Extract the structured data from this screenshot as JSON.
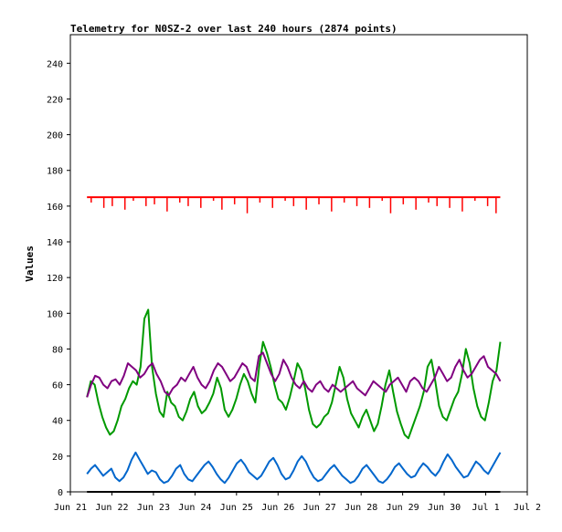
{
  "chart_data": {
    "type": "line",
    "title": "Telemetry for N0SZ-2 over last 240 hours (2874 points)",
    "xlabel": "",
    "ylabel": "Values",
    "ylim": [
      0,
      256
    ],
    "yticks": [
      0,
      20,
      40,
      60,
      80,
      100,
      120,
      140,
      160,
      180,
      200,
      220,
      240
    ],
    "x_tick_labels": [
      "Jun 21",
      "Jun 22",
      "Jun 23",
      "Jun 24",
      "Jun 25",
      "Jun 26",
      "Jun 27",
      "Jun 28",
      "Jun 29",
      "Jun 30",
      "Jul 1",
      "Jul 2"
    ],
    "x_range_days": [
      0,
      11
    ],
    "data_span_days": [
      0.4,
      10.35
    ],
    "grid": false,
    "legend": "none",
    "series": [
      {
        "color": "#ff0000",
        "baseline": 165,
        "values": [
          165,
          162,
          165,
          165,
          159,
          165,
          160,
          165,
          165,
          158,
          165,
          163,
          165,
          165,
          160,
          165,
          161,
          165,
          165,
          157,
          165,
          165,
          162,
          165,
          160,
          165,
          165,
          159,
          165,
          165,
          163,
          165,
          158,
          165,
          165,
          161,
          165,
          165,
          156,
          165,
          165,
          162,
          165,
          165,
          159,
          165,
          165,
          163,
          165,
          160,
          165,
          165,
          158,
          165,
          165,
          161,
          165,
          165,
          157,
          165,
          165,
          162,
          165,
          165,
          160,
          165,
          165,
          159,
          165,
          165,
          163,
          165,
          156,
          165,
          165,
          161,
          165,
          165,
          158,
          165,
          165,
          162,
          165,
          160,
          165,
          165,
          159,
          165,
          165,
          157,
          165,
          165,
          163,
          165,
          165,
          160,
          165,
          156,
          165
        ]
      },
      {
        "color": "#009900",
        "values": [
          53,
          62,
          60,
          50,
          42,
          36,
          32,
          34,
          40,
          48,
          52,
          58,
          62,
          60,
          70,
          97,
          102,
          70,
          55,
          45,
          42,
          56,
          50,
          48,
          42,
          40,
          45,
          52,
          56,
          48,
          44,
          46,
          50,
          55,
          64,
          58,
          46,
          42,
          46,
          52,
          60,
          66,
          62,
          55,
          50,
          70,
          84,
          78,
          70,
          60,
          52,
          50,
          46,
          53,
          62,
          72,
          68,
          58,
          46,
          38,
          36,
          38,
          42,
          44,
          50,
          60,
          70,
          64,
          52,
          44,
          40,
          36,
          42,
          46,
          40,
          34,
          38,
          48,
          60,
          68,
          56,
          45,
          38,
          32,
          30,
          36,
          42,
          48,
          56,
          70,
          74,
          62,
          48,
          42,
          40,
          46,
          52,
          56,
          66,
          80,
          72,
          58,
          48,
          42,
          40,
          50,
          62,
          68,
          84
        ]
      },
      {
        "color": "#800080",
        "values": [
          53,
          60,
          65,
          64,
          60,
          58,
          62,
          63,
          60,
          65,
          72,
          70,
          68,
          64,
          66,
          70,
          72,
          66,
          62,
          56,
          54,
          58,
          60,
          64,
          62,
          66,
          70,
          64,
          60,
          58,
          62,
          68,
          72,
          70,
          66,
          62,
          64,
          68,
          72,
          70,
          64,
          62,
          76,
          78,
          72,
          66,
          62,
          66,
          74,
          70,
          64,
          60,
          58,
          62,
          58,
          56,
          60,
          62,
          58,
          56,
          60,
          58,
          56,
          58,
          60,
          62,
          58,
          56,
          54,
          58,
          62,
          60,
          58,
          56,
          60,
          62,
          64,
          60,
          56,
          62,
          64,
          62,
          58,
          56,
          60,
          64,
          70,
          66,
          62,
          64,
          70,
          74,
          68,
          64,
          66,
          70,
          74,
          76,
          70,
          68,
          66,
          62
        ]
      },
      {
        "color": "#0066cc",
        "values": [
          10,
          13,
          15,
          12,
          9,
          11,
          13,
          8,
          6,
          8,
          12,
          18,
          22,
          18,
          14,
          10,
          12,
          11,
          7,
          5,
          6,
          9,
          13,
          15,
          10,
          7,
          6,
          9,
          12,
          15,
          17,
          14,
          10,
          7,
          5,
          8,
          12,
          16,
          18,
          15,
          11,
          9,
          7,
          9,
          13,
          17,
          19,
          15,
          10,
          7,
          8,
          12,
          17,
          20,
          17,
          12,
          8,
          6,
          7,
          10,
          13,
          15,
          12,
          9,
          7,
          5,
          6,
          9,
          13,
          15,
          12,
          9,
          6,
          5,
          7,
          10,
          14,
          16,
          13,
          10,
          8,
          9,
          13,
          16,
          14,
          11,
          9,
          12,
          17,
          21,
          18,
          14,
          11,
          8,
          9,
          13,
          17,
          15,
          12,
          10,
          14,
          18,
          22
        ]
      },
      {
        "color": "#000000",
        "values": [
          0,
          0
        ]
      }
    ]
  }
}
